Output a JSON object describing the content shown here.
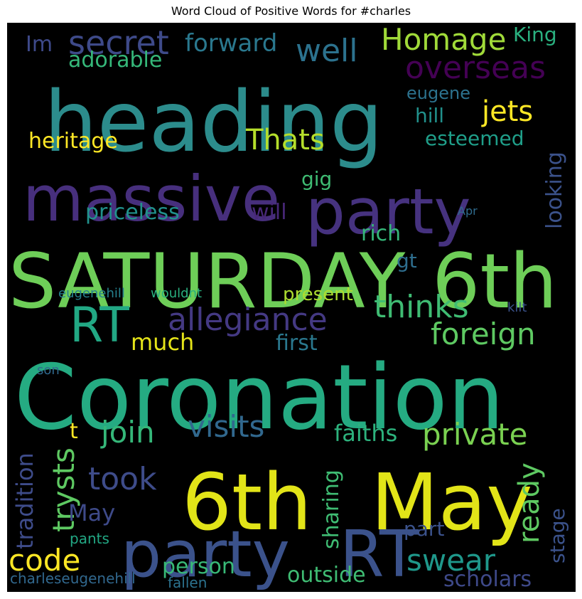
{
  "chart_data": {
    "type": "wordcloud",
    "title": "Word Cloud of Positive Words for #charles",
    "background": "#000000",
    "words": [
      {
        "text": "heading",
        "color": "#2c8c8c"
      },
      {
        "text": "massive",
        "color": "#472f7d"
      },
      {
        "text": "party",
        "color": "#46327f"
      },
      {
        "text": "SATURDAY",
        "color": "#6ece58"
      },
      {
        "text": "6th",
        "color": "#6ece58"
      },
      {
        "text": "Coronation",
        "color": "#25ab82"
      },
      {
        "text": "6th",
        "color": "#e2e418"
      },
      {
        "text": "May",
        "color": "#e2e418"
      },
      {
        "text": "party",
        "color": "#3b528b"
      },
      {
        "text": "RT",
        "color": "#3b528b"
      },
      {
        "text": "RT",
        "color": "#22a884"
      },
      {
        "text": "secret",
        "color": "#3e4a89"
      },
      {
        "text": "well",
        "color": "#2c728e"
      },
      {
        "text": "Homage",
        "color": "#a0da39"
      },
      {
        "text": "overseas",
        "color": "#440154"
      },
      {
        "text": "jets",
        "color": "#fde725"
      },
      {
        "text": "Thats",
        "color": "#b5de2b"
      },
      {
        "text": "allegiance",
        "color": "#443983"
      },
      {
        "text": "thinks",
        "color": "#3fbc73"
      },
      {
        "text": "foreign",
        "color": "#5ec962"
      },
      {
        "text": "join",
        "color": "#35b779"
      },
      {
        "text": "visits",
        "color": "#31688e"
      },
      {
        "text": "private",
        "color": "#7ad151"
      },
      {
        "text": "took",
        "color": "#3e4c8a"
      },
      {
        "text": "trysts",
        "color": "#5ec962"
      },
      {
        "text": "code",
        "color": "#fde725"
      },
      {
        "text": "swear",
        "color": "#1f988b"
      },
      {
        "text": "ready",
        "color": "#5ec962"
      },
      {
        "text": "forward",
        "color": "#2a788e"
      },
      {
        "text": "adorable",
        "color": "#35b779"
      },
      {
        "text": "Im",
        "color": "#3e4989"
      },
      {
        "text": "King",
        "color": "#2ab07f"
      },
      {
        "text": "eugene",
        "color": "#2c728e"
      },
      {
        "text": "hill",
        "color": "#21918c"
      },
      {
        "text": "esteemed",
        "color": "#1f9e89"
      },
      {
        "text": "heritage",
        "color": "#fde725"
      },
      {
        "text": "looking",
        "color": "#3b528b"
      },
      {
        "text": "gig",
        "color": "#3fbc73"
      },
      {
        "text": "priceless",
        "color": "#21918c"
      },
      {
        "text": "will",
        "color": "#482878"
      },
      {
        "text": "rich",
        "color": "#35b779"
      },
      {
        "text": "Apr",
        "color": "#2f6b8e"
      },
      {
        "text": "gt",
        "color": "#2e6e8e"
      },
      {
        "text": "eugenehill",
        "color": "#26818e"
      },
      {
        "text": "wouldnt",
        "color": "#2ab07f"
      },
      {
        "text": "present",
        "color": "#addc30"
      },
      {
        "text": "kilt",
        "color": "#3b528b"
      },
      {
        "text": "much",
        "color": "#e5e419"
      },
      {
        "text": "first",
        "color": "#2a788e"
      },
      {
        "text": "son",
        "color": "#30698e"
      },
      {
        "text": "t",
        "color": "#fde725"
      },
      {
        "text": "faiths",
        "color": "#2db27d"
      },
      {
        "text": "tradition",
        "color": "#3e4c8a"
      },
      {
        "text": "sharing",
        "color": "#3fbc73"
      },
      {
        "text": "May",
        "color": "#3e4a89"
      },
      {
        "text": "part",
        "color": "#3b528b"
      },
      {
        "text": "stage",
        "color": "#3b528b"
      },
      {
        "text": "pants",
        "color": "#22a884"
      },
      {
        "text": "person",
        "color": "#38b977"
      },
      {
        "text": "outside",
        "color": "#3fbc73"
      },
      {
        "text": "scholars",
        "color": "#3e4989"
      },
      {
        "text": "charleseugenehill",
        "color": "#31688e"
      },
      {
        "text": "fallen",
        "color": "#2c728e"
      }
    ]
  }
}
